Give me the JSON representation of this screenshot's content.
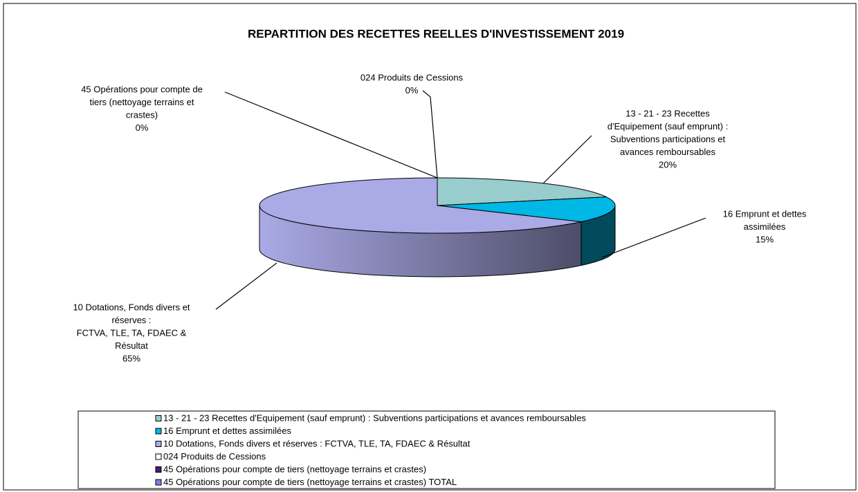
{
  "chart_data": {
    "type": "pie",
    "title": "REPARTITION DES RECETTES REELLES D'INVESTISSEMENT 2019",
    "categories": [
      "13 - 21 - 23 Recettes d'Equipement (sauf emprunt) : Subventions participations et avances remboursables",
      "16 Emprunt et dettes assimilées",
      "10 Dotations, Fonds divers et réserves : FCTVA, TLE, TA, FDAEC & Résultat",
      "024 Produits de Cessions",
      "45 Opérations pour compte de tiers (nettoyage terrains et crastes)",
      "45 Opérations pour compte de tiers (nettoyage terrains et crastes) TOTAL"
    ],
    "values": [
      20,
      15,
      65,
      0,
      0,
      null
    ],
    "value_labels": [
      "20%",
      "15%",
      "65%",
      "0%",
      "0%",
      null
    ],
    "callout_lines": [
      [
        "13 - 21 - 23 Recettes",
        "d'Equipement (sauf emprunt) :",
        "Subventions participations et",
        "avances remboursables"
      ],
      [
        "16 Emprunt et dettes",
        "assimilées"
      ],
      [
        "10 Dotations, Fonds divers et",
        "réserves :",
        "FCTVA, TLE, TA, FDAEC &",
        "Résultat"
      ],
      [
        "024 Produits de Cessions"
      ],
      [
        "45 Opérations pour compte de",
        "tiers (nettoyage terrains et",
        "crastes)"
      ],
      null
    ],
    "colors": [
      "#99cccc",
      "#00b8e6",
      "#aaaae6",
      "#ffffff",
      "#4b1a7a",
      "#8080e0"
    ],
    "legend": "bottom"
  }
}
